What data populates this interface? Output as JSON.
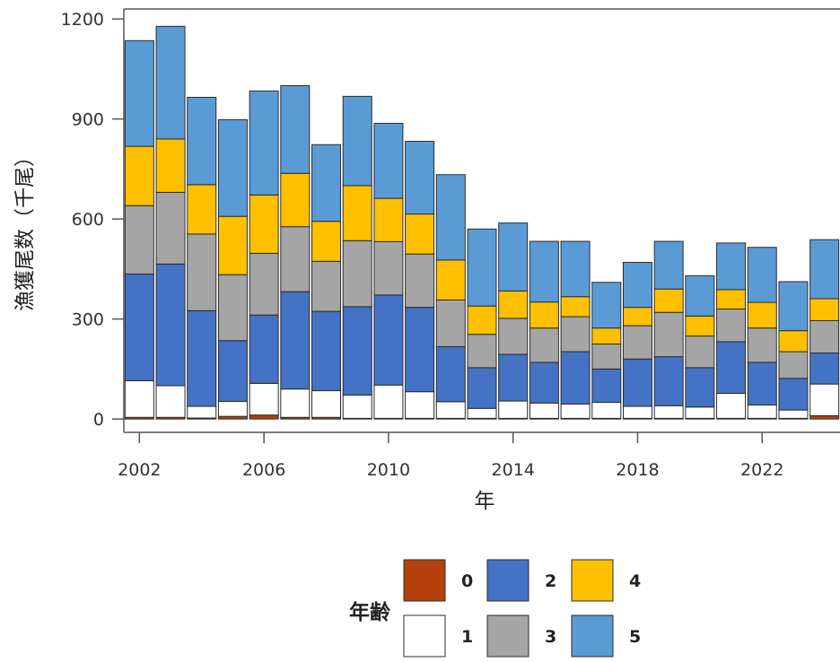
{
  "chart_data": {
    "type": "bar",
    "stacked": true,
    "title": "",
    "xlabel": "年",
    "ylabel": "漁獲尾数（千尾）",
    "x": [
      2002,
      2003,
      2004,
      2005,
      2006,
      2007,
      2008,
      2009,
      2010,
      2011,
      2012,
      2013,
      2014,
      2015,
      2016,
      2017,
      2018,
      2019,
      2020,
      2021,
      2022,
      2023,
      2024
    ],
    "xlim": [
      2001.5,
      2024.5
    ],
    "xticks": [
      "2002",
      "2006",
      "2010",
      "2014",
      "2018",
      "2022"
    ],
    "ylim": [
      -40,
      1230
    ],
    "yticks": [
      "0",
      "300",
      "600",
      "900",
      "1200"
    ],
    "grid": false,
    "legend_title": "年齢",
    "legend_position": "bottom",
    "series": [
      {
        "name": "0",
        "color": "#B5400E",
        "values": [
          5,
          5,
          3,
          8,
          12,
          5,
          5,
          2,
          2,
          2,
          2,
          2,
          2,
          2,
          2,
          2,
          2,
          2,
          2,
          2,
          2,
          2,
          10
        ]
      },
      {
        "name": "1",
        "color": "#FFFFFF",
        "values": [
          110,
          95,
          35,
          45,
          95,
          85,
          80,
          70,
          100,
          80,
          50,
          30,
          52,
          46,
          43,
          48,
          36,
          38,
          34,
          75,
          40,
          25,
          95
        ]
      },
      {
        "name": "2",
        "color": "#4472C4",
        "values": [
          320,
          365,
          287,
          182,
          205,
          292,
          238,
          265,
          270,
          253,
          165,
          122,
          140,
          122,
          157,
          100,
          142,
          147,
          118,
          155,
          128,
          95,
          93
        ]
      },
      {
        "name": "3",
        "color": "#A5A5A5",
        "values": [
          205,
          215,
          230,
          198,
          185,
          195,
          150,
          198,
          160,
          160,
          140,
          100,
          108,
          103,
          105,
          75,
          100,
          133,
          95,
          98,
          103,
          80,
          97
        ]
      },
      {
        "name": "4",
        "color": "#FFC000",
        "values": [
          178,
          160,
          148,
          175,
          175,
          160,
          120,
          165,
          130,
          120,
          120,
          85,
          82,
          78,
          60,
          48,
          55,
          70,
          60,
          58,
          77,
          63,
          66
        ]
      },
      {
        "name": "5",
        "color": "#5B9BD5",
        "values": [
          317,
          338,
          262,
          290,
          312,
          263,
          230,
          268,
          225,
          218,
          256,
          231,
          204,
          182,
          166,
          137,
          135,
          143,
          121,
          140,
          165,
          147,
          177
        ]
      }
    ]
  }
}
